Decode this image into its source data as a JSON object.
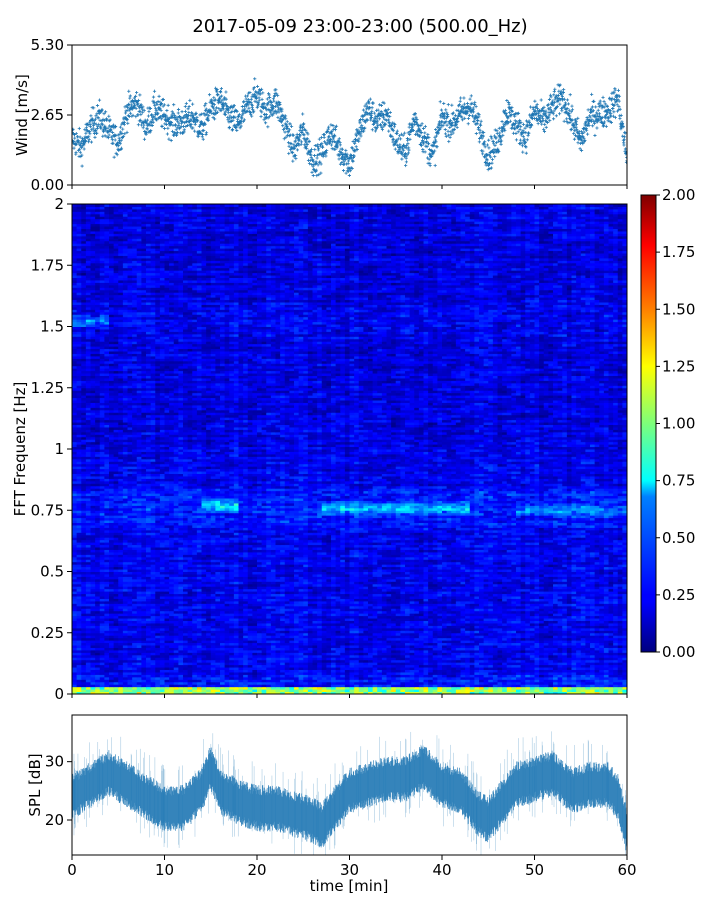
{
  "title": "2017-05-09 23:00-23:00 (500.00_Hz)",
  "colors": {
    "wind_marker": "#1f77b4",
    "spl_line": "#1f77b4",
    "axis": "#000000",
    "colormap": "jet"
  },
  "chart_data": [
    {
      "type": "scatter",
      "name": "wind-panel",
      "ylabel": "Wind [m/s]",
      "xlim": [
        0,
        60
      ],
      "ylim": [
        0,
        5.3
      ],
      "ytick_labels": [
        "0.00",
        "2.65",
        "5.30"
      ],
      "ytick_values": [
        0,
        2.65,
        5.3
      ],
      "marker": "+",
      "series_approx": {
        "x": [
          0,
          1,
          2,
          3,
          4,
          5,
          6,
          7,
          8,
          9,
          10,
          11,
          12,
          13,
          14,
          15,
          16,
          17,
          18,
          19,
          20,
          21,
          22,
          23,
          24,
          25,
          26,
          27,
          28,
          29,
          30,
          31,
          32,
          33,
          34,
          35,
          36,
          37,
          38,
          39,
          40,
          41,
          42,
          43,
          44,
          45,
          46,
          47,
          48,
          49,
          50,
          51,
          52,
          53,
          54,
          55,
          56,
          57,
          58,
          59,
          60
        ],
        "y": [
          1.8,
          1.4,
          2.2,
          2.6,
          2.0,
          1.6,
          2.8,
          3.1,
          2.2,
          2.9,
          2.6,
          2.3,
          2.4,
          2.6,
          2.1,
          2.9,
          3.2,
          2.6,
          2.3,
          3.0,
          3.4,
          2.8,
          3.2,
          2.3,
          1.3,
          2.1,
          0.9,
          1.2,
          2.0,
          1.3,
          0.8,
          1.9,
          2.9,
          2.4,
          2.7,
          1.7,
          1.2,
          2.5,
          1.8,
          1.1,
          2.6,
          2.3,
          2.7,
          3.0,
          2.2,
          1.1,
          1.6,
          2.8,
          2.3,
          1.8,
          2.8,
          2.4,
          3.0,
          3.3,
          2.5,
          1.6,
          2.6,
          2.7,
          2.8,
          3.3,
          1.0
        ]
      }
    },
    {
      "type": "heatmap",
      "name": "spectrogram-panel",
      "ylabel": "FFT Frequenz [Hz]",
      "xlim": [
        0,
        60
      ],
      "ylim": [
        0,
        2
      ],
      "ytick_labels": [
        "0",
        "0.25",
        "0.5",
        "0.75",
        "1",
        "1.25",
        "1.5",
        "1.75",
        "2"
      ],
      "ytick_values": [
        0,
        0.25,
        0.5,
        0.75,
        1,
        1.25,
        1.5,
        1.75,
        2
      ],
      "colorbar": {
        "range": [
          0,
          2
        ],
        "tick_labels": [
          "0.00",
          "0.25",
          "0.50",
          "0.75",
          "1.00",
          "1.25",
          "1.50",
          "1.75",
          "2.00"
        ],
        "tick_values": [
          0,
          0.25,
          0.5,
          0.75,
          1,
          1.25,
          1.5,
          1.75,
          2
        ]
      },
      "features": [
        {
          "label": "low-frequency band",
          "freq_range_hz": [
            0,
            0.03
          ],
          "intensity": 1.0
        },
        {
          "label": "band near 0.75 Hz",
          "freq_hz": 0.77,
          "time_min": [
            14,
            18
          ],
          "intensity": 0.7
        },
        {
          "label": "band near 0.75 Hz",
          "freq_hz": 0.76,
          "time_min": [
            27,
            43
          ],
          "intensity": 0.6
        },
        {
          "label": "band near 0.75 Hz",
          "freq_hz": 0.75,
          "time_min": [
            48,
            60
          ],
          "intensity": 0.45
        },
        {
          "label": "band near 1.52 Hz",
          "freq_hz": 1.52,
          "time_min": [
            0,
            4
          ],
          "intensity": 0.5
        }
      ]
    },
    {
      "type": "line",
      "name": "spl-panel",
      "xlabel": "time [min]",
      "ylabel": "SPL [dB]",
      "xlim": [
        0,
        60
      ],
      "ylim": [
        14,
        38
      ],
      "xtick_labels": [
        "0",
        "10",
        "20",
        "30",
        "40",
        "50",
        "60"
      ],
      "xtick_values": [
        0,
        10,
        20,
        30,
        40,
        50,
        60
      ],
      "ytick_labels": [
        "20",
        "30"
      ],
      "ytick_values": [
        20,
        30
      ],
      "series_approx": {
        "x": [
          0,
          2,
          4,
          6,
          8,
          10,
          12,
          14,
          15,
          16,
          18,
          20,
          22,
          24,
          26,
          27,
          28,
          30,
          32,
          34,
          36,
          38,
          40,
          42,
          44,
          45,
          46,
          48,
          50,
          52,
          54,
          56,
          58,
          59,
          60
        ],
        "y": [
          24,
          26,
          28,
          26,
          24,
          22,
          22,
          25,
          29,
          25,
          23,
          22,
          22,
          21,
          20,
          19,
          21,
          25,
          26,
          27,
          27,
          29,
          26,
          25,
          21,
          20,
          22,
          26,
          27,
          28,
          25,
          26,
          26,
          24,
          18
        ]
      }
    }
  ]
}
